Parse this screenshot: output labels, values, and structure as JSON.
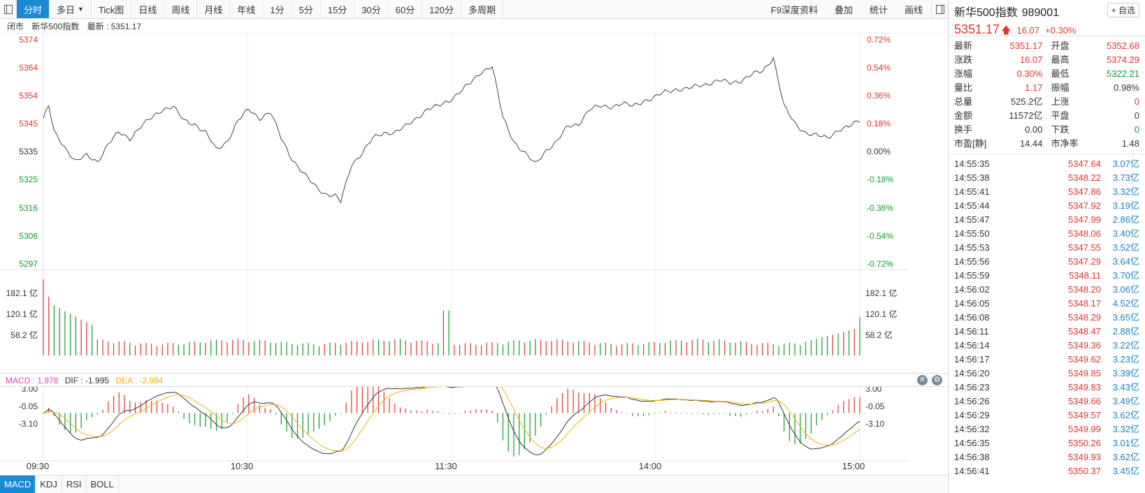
{
  "toolbar": {
    "tabs": [
      "分时",
      "多日",
      "Tick图",
      "日线",
      "周线",
      "月线",
      "年线",
      "1分",
      "5分",
      "15分",
      "30分",
      "60分",
      "120分",
      "多周期"
    ],
    "right_buttons": [
      "F9深度资料",
      "叠加",
      "统计",
      "画线"
    ]
  },
  "status": {
    "state": "闭市",
    "name": "新华500指数",
    "latest": "最新 : 5351.17"
  },
  "chart": {
    "price_ticks_left": [
      "5374",
      "5364",
      "5354",
      "5345",
      "5335",
      "5325",
      "5316",
      "5306",
      "5297"
    ],
    "pct_ticks_right": [
      "0.72%",
      "0.54%",
      "0.36%",
      "0.18%",
      "0.00%",
      "-0.18%",
      "-0.36%",
      "-0.54%",
      "-0.72%"
    ],
    "volume_ticks": [
      "182.1 亿",
      "120.1 亿",
      "58.2 亿"
    ],
    "macd_ticks": [
      "3.00",
      "-0.05",
      "-3.10"
    ],
    "time_labels": [
      "09:30",
      "10:30",
      "11:30",
      "14:00",
      "15:00"
    ],
    "colors": {
      "up": "#e0342f",
      "down": "#0f9b2e",
      "price_line": "#444444",
      "dif": "#333333",
      "dea": "#f0b400",
      "macd_label": "#e63dcc"
    }
  },
  "macd_header": {
    "macd": "MACD : 1.978",
    "dif": "DIF : -1.995",
    "dea": "DEA : -2.984"
  },
  "bottom_tabs": [
    "MACD",
    "KDJ",
    "RSI",
    "BOLL"
  ],
  "panel": {
    "name": "新华500指数",
    "code": "989001",
    "fav": "+ 自选",
    "price": "5351.17",
    "change": "16.07",
    "change_pct": "+0.30%",
    "quotes": [
      [
        {
          "k": "最新",
          "v": "5351.17",
          "c": "red"
        },
        {
          "k": "开盘",
          "v": "5352.68",
          "c": "red"
        }
      ],
      [
        {
          "k": "涨跌",
          "v": "16.07",
          "c": "red"
        },
        {
          "k": "最高",
          "v": "5374.29",
          "c": "red"
        }
      ],
      [
        {
          "k": "涨幅",
          "v": "0.30%",
          "c": "red"
        },
        {
          "k": "最低",
          "v": "5322.21",
          "c": "green"
        }
      ],
      [
        {
          "k": "量比",
          "v": "1.17",
          "c": "red"
        },
        {
          "k": "振幅",
          "v": "0.98%",
          "c": "dark"
        }
      ],
      [
        {
          "k": "总量",
          "v": "525.2亿",
          "c": "dark"
        },
        {
          "k": "上涨",
          "v": "0",
          "c": "red"
        }
      ],
      [
        {
          "k": "金额",
          "v": "11572亿",
          "c": "dark"
        },
        {
          "k": "平盘",
          "v": "0",
          "c": "dark"
        }
      ],
      [
        {
          "k": "换手",
          "v": "0.00",
          "c": "dark"
        },
        {
          "k": "下跌",
          "v": "0",
          "c": "green"
        }
      ],
      [
        {
          "k": "市盈[静]",
          "v": "14.44",
          "c": "dark"
        },
        {
          "k": "市净率",
          "v": "1.48",
          "c": "dark"
        }
      ]
    ],
    "ticks": [
      {
        "t": "14:55:35",
        "p": "5347.64",
        "a": "3.07亿"
      },
      {
        "t": "14:55:38",
        "p": "5348.22",
        "a": "3.73亿"
      },
      {
        "t": "14:55:41",
        "p": "5347.86",
        "a": "3.32亿"
      },
      {
        "t": "14:55:44",
        "p": "5347.92",
        "a": "3.19亿"
      },
      {
        "t": "14:55:47",
        "p": "5347.99",
        "a": "2.86亿"
      },
      {
        "t": "14:55:50",
        "p": "5348.06",
        "a": "3.40亿"
      },
      {
        "t": "14:55:53",
        "p": "5347.55",
        "a": "3.52亿"
      },
      {
        "t": "14:55:56",
        "p": "5347.29",
        "a": "3.64亿"
      },
      {
        "t": "14:55:59",
        "p": "5348.11",
        "a": "3.70亿"
      },
      {
        "t": "14:56:02",
        "p": "5348.20",
        "a": "3.06亿"
      },
      {
        "t": "14:56:05",
        "p": "5348.17",
        "a": "4.52亿"
      },
      {
        "t": "14:56:08",
        "p": "5348.29",
        "a": "3.65亿"
      },
      {
        "t": "14:56:11",
        "p": "5348.47",
        "a": "2.88亿"
      },
      {
        "t": "14:56:14",
        "p": "5349.36",
        "a": "3.22亿"
      },
      {
        "t": "14:56:17",
        "p": "5349.62",
        "a": "3.23亿"
      },
      {
        "t": "14:56:20",
        "p": "5349.85",
        "a": "3.39亿"
      },
      {
        "t": "14:56:23",
        "p": "5349.83",
        "a": "3.43亿"
      },
      {
        "t": "14:56:26",
        "p": "5349.66",
        "a": "3.49亿"
      },
      {
        "t": "14:56:29",
        "p": "5349.57",
        "a": "3.62亿"
      },
      {
        "t": "14:56:32",
        "p": "5349.99",
        "a": "3.32亿"
      },
      {
        "t": "14:56:35",
        "p": "5350.26",
        "a": "3.01亿"
      },
      {
        "t": "14:56:38",
        "p": "5349.93",
        "a": "3.62亿"
      },
      {
        "t": "14:56:41",
        "p": "5350.37",
        "a": "3.45亿"
      }
    ]
  },
  "chart_data": {
    "type": "line",
    "price_key_points": [
      [
        0,
        5352
      ],
      [
        2,
        5356
      ],
      [
        4,
        5347
      ],
      [
        8,
        5342
      ],
      [
        12,
        5337
      ],
      [
        16,
        5339
      ],
      [
        20,
        5337
      ],
      [
        24,
        5343
      ],
      [
        28,
        5347
      ],
      [
        32,
        5345
      ],
      [
        36,
        5349
      ],
      [
        40,
        5352
      ],
      [
        44,
        5355
      ],
      [
        48,
        5356
      ],
      [
        52,
        5351
      ],
      [
        56,
        5350
      ],
      [
        60,
        5347
      ],
      [
        64,
        5341
      ],
      [
        68,
        5344
      ],
      [
        72,
        5351
      ],
      [
        76,
        5355
      ],
      [
        80,
        5352
      ],
      [
        84,
        5354
      ],
      [
        88,
        5345
      ],
      [
        92,
        5338
      ],
      [
        96,
        5333
      ],
      [
        100,
        5329
      ],
      [
        104,
        5326
      ],
      [
        108,
        5325
      ],
      [
        110,
        5323
      ],
      [
        114,
        5336
      ],
      [
        118,
        5340
      ],
      [
        122,
        5345
      ],
      [
        126,
        5347
      ],
      [
        130,
        5347
      ],
      [
        134,
        5349
      ],
      [
        138,
        5352
      ],
      [
        142,
        5355
      ],
      [
        146,
        5356
      ],
      [
        150,
        5358
      ],
      [
        154,
        5361
      ],
      [
        158,
        5364
      ],
      [
        162,
        5368
      ],
      [
        166,
        5370
      ],
      [
        170,
        5352
      ],
      [
        174,
        5344
      ],
      [
        178,
        5340
      ],
      [
        182,
        5336
      ],
      [
        186,
        5341
      ],
      [
        190,
        5344
      ],
      [
        194,
        5349
      ],
      [
        198,
        5350
      ],
      [
        202,
        5355
      ],
      [
        206,
        5356
      ],
      [
        210,
        5356
      ],
      [
        214,
        5357
      ],
      [
        218,
        5356
      ],
      [
        222,
        5358
      ],
      [
        226,
        5359
      ],
      [
        230,
        5361
      ],
      [
        234,
        5362
      ],
      [
        238,
        5362
      ],
      [
        242,
        5363
      ],
      [
        246,
        5364
      ],
      [
        250,
        5365
      ],
      [
        254,
        5364
      ],
      [
        258,
        5365
      ],
      [
        262,
        5367
      ],
      [
        266,
        5368
      ],
      [
        270,
        5373
      ],
      [
        274,
        5356
      ],
      [
        278,
        5350
      ],
      [
        282,
        5347
      ],
      [
        286,
        5346
      ],
      [
        290,
        5345
      ],
      [
        294,
        5348
      ],
      [
        298,
        5349
      ],
      [
        302,
        5351
      ]
    ],
    "price_range": [
      5292,
      5379
    ],
    "volume_range_yi": [
      0,
      240
    ],
    "macd_range": [
      -5.8,
      5.1
    ]
  }
}
